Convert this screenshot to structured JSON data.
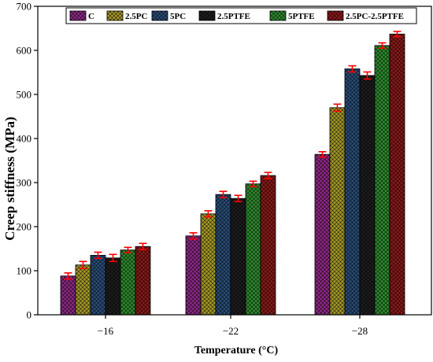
{
  "chart_data": {
    "type": "bar",
    "xlabel": "Temperature (°C)",
    "ylabel": "Creep stiffness (MPa)",
    "categories": [
      "-16",
      "-22",
      "-28"
    ],
    "ylim": [
      0,
      700
    ],
    "yticks": [
      0,
      100,
      200,
      300,
      400,
      500,
      600,
      700
    ],
    "grid": false,
    "legend_position": "top",
    "series": [
      {
        "name": "C",
        "values": [
          88,
          179,
          364
        ],
        "errors": [
          7,
          7,
          6
        ],
        "color": "#8E2A86"
      },
      {
        "name": "2.5PC",
        "values": [
          113,
          229,
          470
        ],
        "errors": [
          8,
          7,
          8
        ],
        "color": "#A69A2A"
      },
      {
        "name": "5PC",
        "values": [
          135,
          273,
          558
        ],
        "errors": [
          7,
          7,
          7
        ],
        "color": "#2A4E78"
      },
      {
        "name": "2.5PTFE",
        "values": [
          129,
          264,
          543
        ],
        "errors": [
          8,
          7,
          8
        ],
        "color": "#1E1E1E"
      },
      {
        "name": "5PTFE",
        "values": [
          147,
          297,
          611
        ],
        "errors": [
          6,
          6,
          6
        ],
        "color": "#2F8C2F"
      },
      {
        "name": "2.5PC-2.5PTFE",
        "values": [
          155,
          316,
          637
        ],
        "errors": [
          7,
          7,
          6
        ],
        "color": "#8B1A1A"
      }
    ],
    "error_bar_color": "#FF0000"
  }
}
